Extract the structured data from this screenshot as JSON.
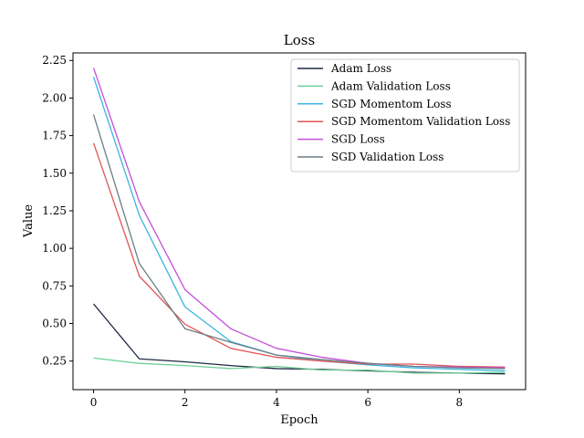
{
  "chart_data": {
    "type": "line",
    "title": "Loss",
    "xlabel": "Epoch",
    "ylabel": "Value",
    "xlim": [
      -0.45,
      9.45
    ],
    "ylim": [
      0.06,
      2.3
    ],
    "xticks": [
      0,
      2,
      4,
      6,
      8
    ],
    "xtick_labels": [
      "0",
      "2",
      "4",
      "6",
      "8"
    ],
    "yticks": [
      0.25,
      0.5,
      0.75,
      1.0,
      1.25,
      1.5,
      1.75,
      2.0,
      2.25
    ],
    "ytick_labels": [
      "0.25",
      "0.50",
      "0.75",
      "1.00",
      "1.25",
      "1.50",
      "1.75",
      "2.00",
      "2.25"
    ],
    "grid": false,
    "legend_position": "top-right",
    "x": [
      0,
      1,
      2,
      3,
      4,
      5,
      6,
      7,
      8,
      9
    ],
    "series": [
      {
        "name": "Adam Loss",
        "color": "#1f2a44",
        "values": [
          0.63,
          0.265,
          0.245,
          0.22,
          0.2,
          0.195,
          0.185,
          0.175,
          0.17,
          0.165
        ]
      },
      {
        "name": "Adam Validation Loss",
        "color": "#6fcf97",
        "values": [
          0.27,
          0.235,
          0.22,
          0.2,
          0.215,
          0.19,
          0.19,
          0.17,
          0.17,
          0.175
        ]
      },
      {
        "name": "SGD Momentom Loss",
        "color": "#3ab5e0",
        "values": [
          2.14,
          1.22,
          0.61,
          0.38,
          0.29,
          0.25,
          0.225,
          0.205,
          0.195,
          0.185
        ]
      },
      {
        "name": "SGD Momentom Validation Loss",
        "color": "#e05555",
        "values": [
          1.7,
          0.815,
          0.495,
          0.335,
          0.275,
          0.25,
          0.23,
          0.23,
          0.215,
          0.21
        ]
      },
      {
        "name": "SGD Loss",
        "color": "#c54fd9",
        "values": [
          2.2,
          1.31,
          0.725,
          0.465,
          0.335,
          0.275,
          0.235,
          0.215,
          0.21,
          0.205
        ]
      },
      {
        "name": "SGD Validation Loss",
        "color": "#6c7f86",
        "values": [
          1.89,
          0.9,
          0.465,
          0.375,
          0.29,
          0.26,
          0.235,
          0.215,
          0.205,
          0.2
        ]
      }
    ]
  }
}
